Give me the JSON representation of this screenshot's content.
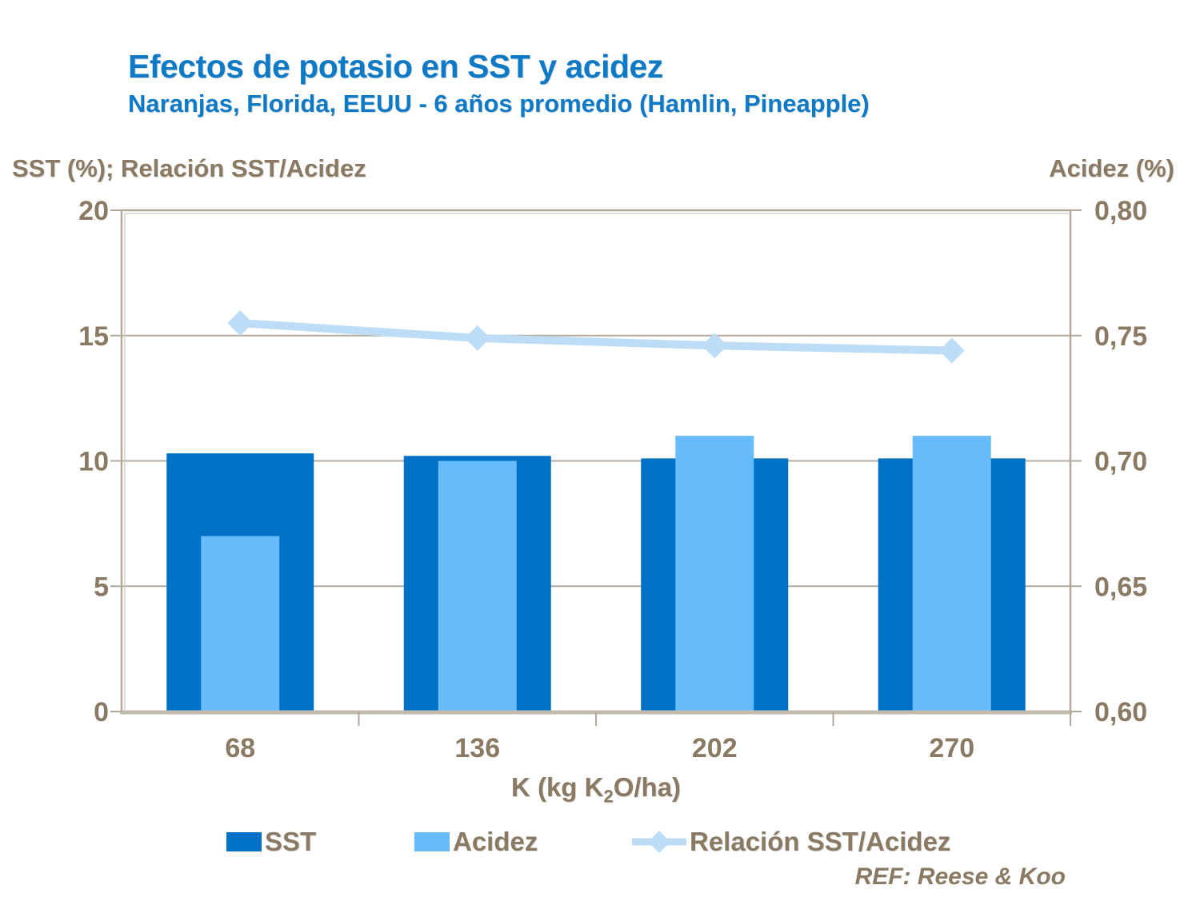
{
  "title": "Efectos de potasio en SST y acidez",
  "subtitle": "Naranjas, Florida, EEUU - 6 años promedio (Hamlin, Pineapple)",
  "reference": "REF: Reese & Koo",
  "colors": {
    "title_blue": "#0E7AC6",
    "text_brown": "#8A7A63",
    "bar_sst": "#0071C5",
    "bar_acidez": "#66BBFA",
    "line_ratio": "#BDDDF7",
    "frame": "#B2A89C",
    "gridline": "#B4AA9E",
    "axis_baseline": "#C3BAAE"
  },
  "chart_data": {
    "type": "bar",
    "subtype": "dual-axis bars with overlay line",
    "categories": [
      "68",
      "136",
      "202",
      "270"
    ],
    "series": [
      {
        "name": "SST",
        "type": "bar",
        "axis": "left",
        "color": "#0071C5",
        "values": [
          10.3,
          10.2,
          10.1,
          10.1
        ]
      },
      {
        "name": "Acidez",
        "type": "bar",
        "axis": "right",
        "color": "#66BBFA",
        "values": [
          0.67,
          0.7,
          0.71,
          0.71
        ]
      },
      {
        "name": "Relación SST/Acidez",
        "type": "line",
        "axis": "left",
        "color": "#BDDDF7",
        "values": [
          15.5,
          14.9,
          14.6,
          14.4
        ]
      }
    ],
    "left_axis": {
      "label": "SST (%); Relación SST/Acidez",
      "min": 0,
      "max": 20,
      "ticks": [
        20,
        15,
        10,
        5,
        0
      ]
    },
    "right_axis": {
      "label": "Acidez (%)",
      "min": 0.6,
      "max": 0.8,
      "tick_labels": [
        "0,80",
        "0,75",
        "0,70",
        "0,65",
        "0,60"
      ]
    },
    "xlabel_parts": {
      "pre": "K (kg K",
      "sub": "2",
      "post": "O/ha)"
    },
    "grid": true,
    "legend_position": "bottom"
  }
}
